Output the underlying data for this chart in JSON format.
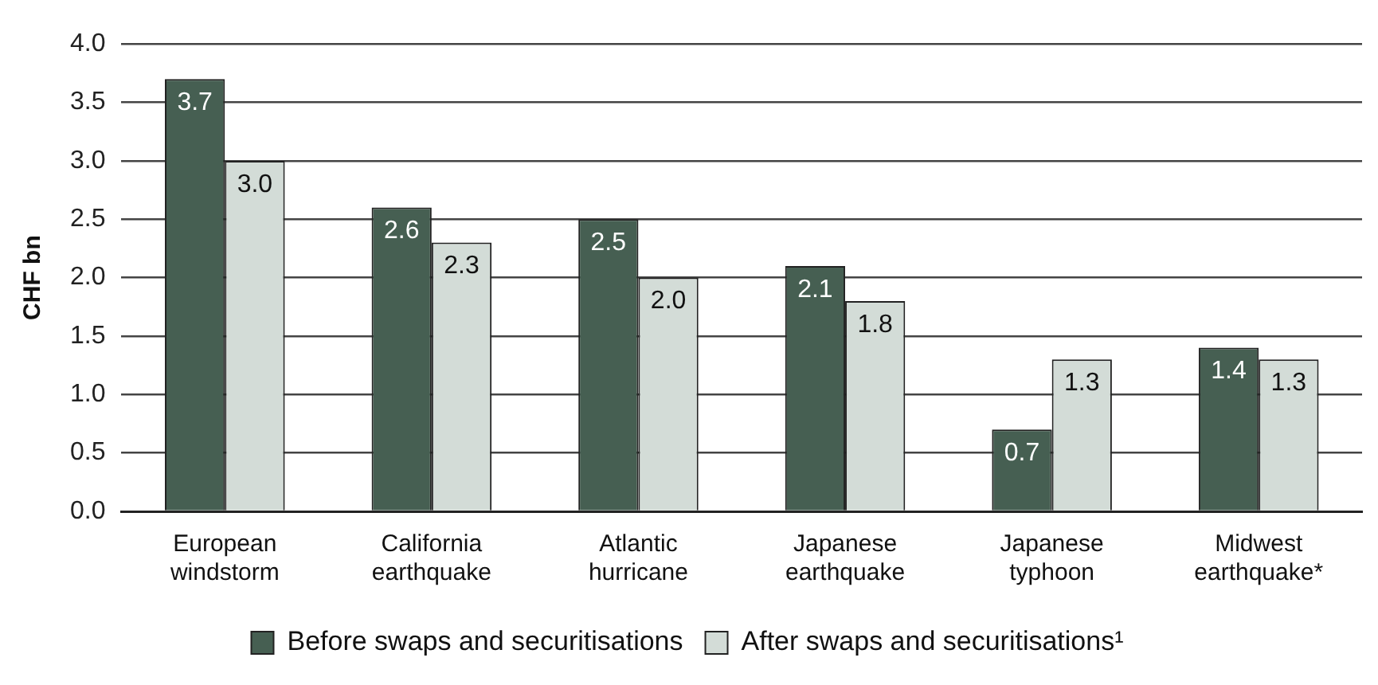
{
  "chart_data": {
    "type": "bar",
    "ylabel": "CHF bn",
    "categories": [
      "European windstorm",
      "California earthquake",
      "Atlantic hurricane",
      "Japanese earthquake",
      "Japanese typhoon",
      "Midwest earthquake*"
    ],
    "series": [
      {
        "name": "Before swaps and securitisations",
        "color": "#465f52",
        "values": [
          3.7,
          2.6,
          2.5,
          2.1,
          0.7,
          1.4
        ],
        "value_labels": [
          "3.7",
          "2.6",
          "2.5",
          "2.1",
          "0.7",
          "1.4"
        ]
      },
      {
        "name": "After swaps and securitisations¹",
        "color": "#d3dcd7",
        "values": [
          3.0,
          2.3,
          2.0,
          1.8,
          1.3,
          1.3
        ],
        "value_labels": [
          "3.0",
          "2.3",
          "2.0",
          "1.8",
          "1.3",
          "1.3"
        ]
      }
    ],
    "ylim": [
      0,
      4
    ],
    "yticks": [
      {
        "value": 0,
        "label": "0.0"
      },
      {
        "value": 0.5,
        "label": "0.5"
      },
      {
        "value": 1,
        "label": "1.0"
      },
      {
        "value": 1.5,
        "label": "1.5"
      },
      {
        "value": 2,
        "label": "2.0"
      },
      {
        "value": 2.5,
        "label": "2.5"
      },
      {
        "value": 3,
        "label": "3.0"
      },
      {
        "value": 3.5,
        "label": "3.5"
      },
      {
        "value": 4,
        "label": "4.0"
      }
    ],
    "grid": "y",
    "legend": "bottom"
  }
}
